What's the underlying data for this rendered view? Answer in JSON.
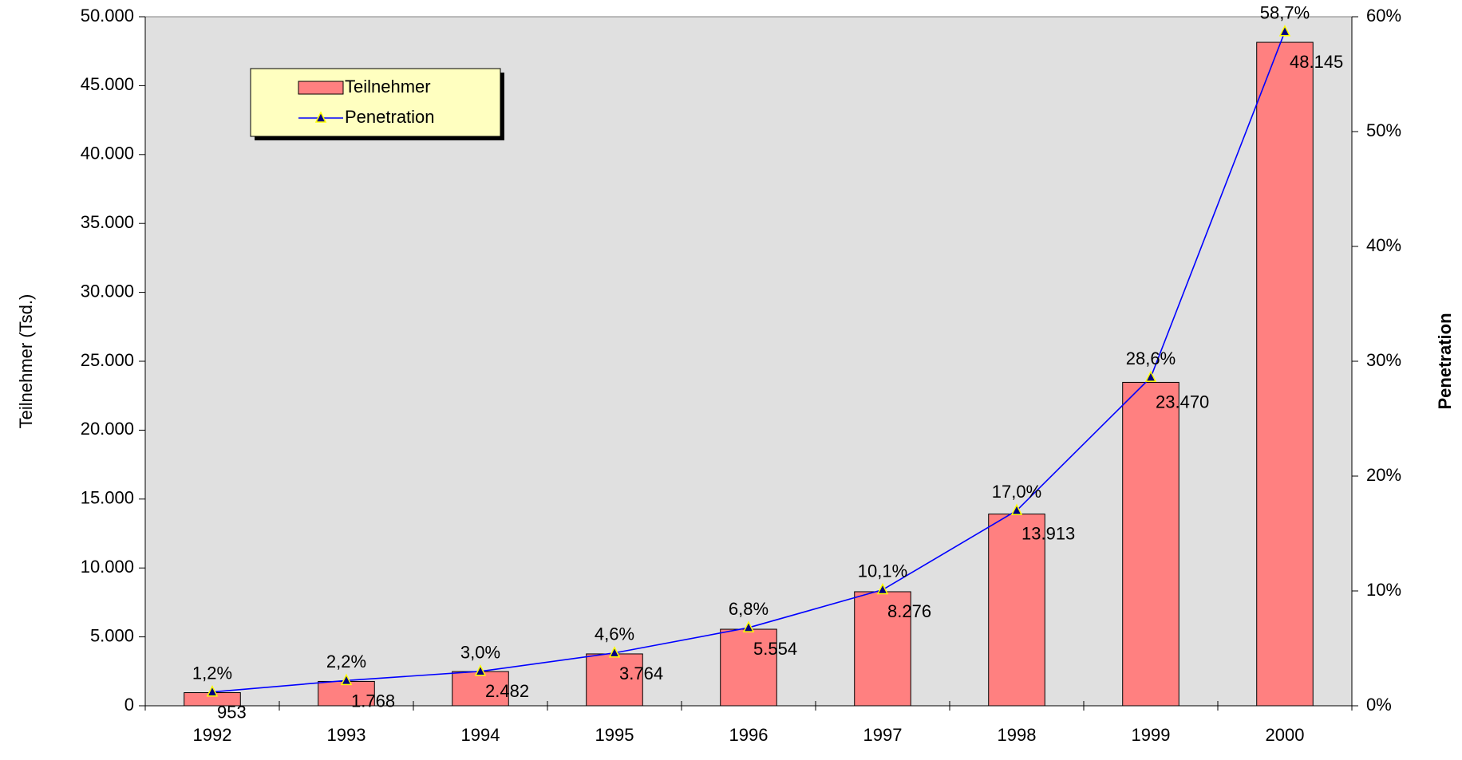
{
  "chart_data": {
    "type": "bar",
    "categories": [
      "1992",
      "1993",
      "1994",
      "1995",
      "1996",
      "1997",
      "1998",
      "1999",
      "2000"
    ],
    "series": [
      {
        "name": "Teilnehmer",
        "color": "#ff8080",
        "values": [
          953,
          1768,
          2482,
          3764,
          5554,
          8276,
          13913,
          23470,
          48145
        ],
        "value_labels": [
          "953",
          "1.768",
          "2.482",
          "3.764",
          "5.554",
          "8.276",
          "13.913",
          "23.470",
          "48.145"
        ]
      },
      {
        "name": "Penetration",
        "type": "line",
        "axis": "y2",
        "color": "#0000ff",
        "marker_color": "#ffff00",
        "values": [
          1.2,
          2.2,
          3.0,
          4.6,
          6.8,
          10.1,
          17.0,
          28.6,
          58.7
        ],
        "value_labels": [
          "1,2%",
          "2,2%",
          "3,0%",
          "4,6%",
          "6,8%",
          "10,1%",
          "17,0%",
          "28,6%",
          "58,7%"
        ]
      }
    ],
    "y_label": "Teilnehmer (Tsd.)",
    "y2_label": "Penetration",
    "ylim": [
      0,
      50000
    ],
    "yticks": [
      0,
      {
        "value": 5000,
        "label": "5.000"
      },
      {
        "value": 10000,
        "label": "10.000"
      },
      {
        "value": 15000,
        "label": "15.000"
      },
      {
        "value": 20000,
        "label": "20.000"
      },
      {
        "value": 25000,
        "label": "25.000"
      },
      {
        "value": 30000,
        "label": "30.000"
      },
      {
        "value": 35000,
        "label": "35.000"
      },
      {
        "value": 40000,
        "label": "40.000"
      },
      {
        "value": 45000,
        "label": "45.000"
      },
      {
        "value": 50000,
        "label": "50.000"
      }
    ],
    "y2lim": [
      0,
      60
    ],
    "y2ticks": [
      {
        "value": 0,
        "label": "0%"
      },
      {
        "value": 10,
        "label": "10%"
      },
      {
        "value": 20,
        "label": "20%"
      },
      {
        "value": 30,
        "label": "30%"
      },
      {
        "value": 40,
        "label": "40%"
      },
      {
        "value": 50,
        "label": "50%"
      },
      {
        "value": 60,
        "label": "60%"
      }
    ],
    "legend": "upper left",
    "background": "#e0e0e0"
  }
}
